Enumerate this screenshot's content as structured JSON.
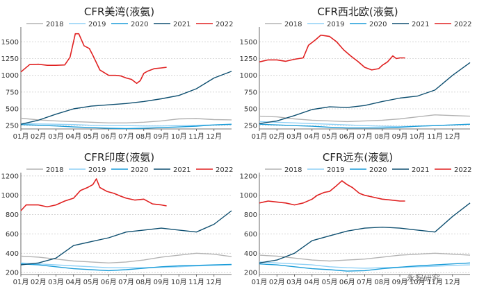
{
  "watermark": "永安研究",
  "chart_data": [
    {
      "type": "line",
      "title": "CFR美湾(液氨)",
      "categories": [
        "01月",
        "02月",
        "03月",
        "04月",
        "05月",
        "06月",
        "07月",
        "08月",
        "09月",
        "10月",
        "11月",
        "12月"
      ],
      "ylim": [
        200,
        1700
      ],
      "yticks": [
        250,
        500,
        750,
        1000,
        1250,
        1500
      ],
      "legend_position": "top",
      "grid": true,
      "series": [
        {
          "name": "2018",
          "color": "#b3b3b3",
          "x": [
            0,
            1,
            2,
            3,
            4,
            5,
            6,
            7,
            8,
            9,
            10,
            11,
            12
          ],
          "values": [
            360,
            335,
            320,
            310,
            300,
            290,
            290,
            300,
            320,
            350,
            355,
            340,
            335
          ]
        },
        {
          "name": "2019",
          "color": "#8fd0f5",
          "x": [
            0,
            1,
            2,
            3,
            4,
            5,
            6,
            7,
            8,
            9,
            10,
            11,
            12
          ],
          "values": [
            280,
            275,
            270,
            265,
            255,
            250,
            250,
            245,
            245,
            250,
            255,
            260,
            265
          ]
        },
        {
          "name": "2020",
          "color": "#1a9cd8",
          "x": [
            0,
            1,
            2,
            3,
            4,
            5,
            6,
            7,
            8,
            9,
            10,
            11,
            12
          ],
          "values": [
            265,
            255,
            245,
            230,
            220,
            210,
            205,
            210,
            220,
            230,
            240,
            260,
            270
          ]
        },
        {
          "name": "2021",
          "color": "#0e4f70",
          "x": [
            0,
            1,
            2,
            3,
            4,
            5,
            6,
            7,
            8,
            9,
            10,
            11,
            12
          ],
          "values": [
            270,
            330,
            420,
            500,
            540,
            560,
            580,
            610,
            650,
            700,
            800,
            960,
            1060
          ]
        },
        {
          "name": "2022",
          "color": "#e02020",
          "x": [
            0,
            0.5,
            1,
            1.5,
            2,
            2.5,
            2.8,
            3.1,
            3.3,
            3.6,
            3.9,
            4.1,
            4.5,
            5,
            5.4,
            5.7,
            6,
            6.3,
            6.6,
            6.8,
            7,
            7.2,
            7.6,
            8,
            8.3
          ],
          "values": [
            1050,
            1160,
            1165,
            1150,
            1150,
            1155,
            1270,
            1620,
            1620,
            1440,
            1400,
            1300,
            1080,
            1000,
            1000,
            990,
            960,
            940,
            880,
            920,
            1030,
            1060,
            1100,
            1110,
            1120
          ]
        }
      ]
    },
    {
      "type": "line",
      "title": "CFR西北欧(液氨)",
      "categories": [
        "01月",
        "02月",
        "03月",
        "04月",
        "05月",
        "06月",
        "07月",
        "08月",
        "09月",
        "10月",
        "11月",
        "12月"
      ],
      "ylim": [
        200,
        1700
      ],
      "yticks": [
        250,
        500,
        750,
        1000,
        1250,
        1500
      ],
      "legend_position": "top",
      "grid": true,
      "series": [
        {
          "name": "2018",
          "color": "#b3b3b3",
          "x": [
            0,
            1,
            2,
            3,
            4,
            5,
            6,
            7,
            8,
            9,
            10,
            11,
            12
          ],
          "values": [
            390,
            380,
            350,
            330,
            320,
            310,
            320,
            330,
            350,
            380,
            410,
            400,
            390
          ]
        },
        {
          "name": "2019",
          "color": "#8fd0f5",
          "x": [
            0,
            1,
            2,
            3,
            4,
            5,
            6,
            7,
            8,
            9,
            10,
            11,
            12
          ],
          "values": [
            310,
            300,
            290,
            280,
            270,
            260,
            250,
            240,
            235,
            240,
            250,
            260,
            270
          ]
        },
        {
          "name": "2020",
          "color": "#1a9cd8",
          "x": [
            0,
            1,
            2,
            3,
            4,
            5,
            6,
            7,
            8,
            9,
            10,
            11,
            12
          ],
          "values": [
            270,
            260,
            250,
            240,
            225,
            215,
            215,
            215,
            225,
            240,
            250,
            260,
            270
          ]
        },
        {
          "name": "2021",
          "color": "#0e4f70",
          "x": [
            0,
            1,
            2,
            3,
            4,
            5,
            6,
            7,
            8,
            9,
            10,
            11,
            12
          ],
          "values": [
            280,
            320,
            400,
            490,
            530,
            520,
            550,
            610,
            660,
            690,
            780,
            1000,
            1190
          ]
        },
        {
          "name": "2022",
          "color": "#e02020",
          "x": [
            0,
            0.5,
            1,
            1.5,
            2,
            2.5,
            2.8,
            3.2,
            3.5,
            4,
            4.4,
            4.8,
            5.2,
            5.6,
            6,
            6.4,
            6.8,
            7,
            7.3,
            7.6,
            7.8,
            8,
            8.3
          ],
          "values": [
            1200,
            1230,
            1230,
            1210,
            1240,
            1260,
            1450,
            1530,
            1600,
            1580,
            1500,
            1380,
            1290,
            1210,
            1120,
            1080,
            1100,
            1150,
            1200,
            1290,
            1250,
            1260,
            1260
          ]
        }
      ]
    },
    {
      "type": "line",
      "title": "CFR印度(液氨)",
      "categories": [
        "01月",
        "02月",
        "03月",
        "04月",
        "05月",
        "06月",
        "07月",
        "08月",
        "09月",
        "10月",
        "11月",
        "12月"
      ],
      "ylim": [
        180,
        1220
      ],
      "yticks": [
        200,
        400,
        600,
        800,
        1000,
        1200
      ],
      "legend_position": "top",
      "grid": true,
      "series": [
        {
          "name": "2018",
          "color": "#b3b3b3",
          "x": [
            0,
            1,
            2,
            3,
            4,
            5,
            6,
            7,
            8,
            9,
            10,
            11,
            12
          ],
          "values": [
            370,
            360,
            340,
            320,
            310,
            300,
            310,
            330,
            360,
            380,
            400,
            390,
            365
          ]
        },
        {
          "name": "2019",
          "color": "#8fd0f5",
          "x": [
            0,
            1,
            2,
            3,
            4,
            5,
            6,
            7,
            8,
            9,
            10,
            11,
            12
          ],
          "values": [
            300,
            290,
            280,
            270,
            260,
            250,
            250,
            250,
            255,
            260,
            270,
            275,
            280
          ]
        },
        {
          "name": "2020",
          "color": "#1a9cd8",
          "x": [
            0,
            1,
            2,
            3,
            4,
            5,
            6,
            7,
            8,
            9,
            10,
            11,
            12
          ],
          "values": [
            290,
            280,
            260,
            240,
            230,
            220,
            230,
            245,
            260,
            270,
            275,
            280,
            285
          ]
        },
        {
          "name": "2021",
          "color": "#0e4f70",
          "x": [
            0,
            1,
            2,
            3,
            4,
            5,
            6,
            7,
            8,
            9,
            10,
            11,
            12
          ],
          "values": [
            280,
            300,
            350,
            480,
            520,
            560,
            620,
            640,
            660,
            640,
            620,
            700,
            840
          ]
        },
        {
          "name": "2022",
          "color": "#e02020",
          "x": [
            0,
            0.3,
            1,
            1.5,
            2,
            2.5,
            3,
            3.4,
            3.8,
            4.1,
            4.3,
            4.5,
            4.9,
            5.3,
            5.7,
            6,
            6.5,
            7,
            7.5,
            8,
            8.3
          ],
          "values": [
            840,
            900,
            900,
            880,
            900,
            940,
            970,
            1050,
            1080,
            1110,
            1170,
            1080,
            1040,
            1020,
            990,
            970,
            950,
            960,
            910,
            900,
            890
          ]
        }
      ]
    },
    {
      "type": "line",
      "title": "CFR远东(液氨)",
      "categories": [
        "01月",
        "02月",
        "03月",
        "04月",
        "05月",
        "06月",
        "07月",
        "08月",
        "09月",
        "10月",
        "11月",
        "12月"
      ],
      "ylim": [
        180,
        1220
      ],
      "yticks": [
        200,
        400,
        600,
        800,
        1000,
        1200
      ],
      "legend_position": "top",
      "grid": true,
      "series": [
        {
          "name": "2018",
          "color": "#b3b3b3",
          "x": [
            0,
            1,
            2,
            3,
            4,
            5,
            6,
            7,
            8,
            9,
            10,
            11,
            12
          ],
          "values": [
            380,
            370,
            350,
            330,
            320,
            330,
            340,
            360,
            380,
            390,
            400,
            390,
            380
          ]
        },
        {
          "name": "2019",
          "color": "#8fd0f5",
          "x": [
            0,
            1,
            2,
            3,
            4,
            5,
            6,
            7,
            8,
            9,
            10,
            11,
            12
          ],
          "values": [
            310,
            300,
            290,
            280,
            260,
            250,
            245,
            250,
            255,
            260,
            265,
            275,
            280
          ]
        },
        {
          "name": "2020",
          "color": "#1a9cd8",
          "x": [
            0,
            1,
            2,
            3,
            4,
            5,
            6,
            7,
            8,
            9,
            10,
            11,
            12
          ],
          "values": [
            290,
            280,
            260,
            240,
            230,
            215,
            220,
            240,
            255,
            270,
            280,
            290,
            300
          ]
        },
        {
          "name": "2021",
          "color": "#0e4f70",
          "x": [
            0,
            1,
            2,
            3,
            4,
            5,
            6,
            7,
            8,
            9,
            10,
            11,
            12
          ],
          "values": [
            300,
            330,
            400,
            530,
            580,
            630,
            660,
            670,
            660,
            640,
            620,
            780,
            920
          ]
        },
        {
          "name": "2022",
          "color": "#e02020",
          "x": [
            0,
            0.5,
            1,
            1.5,
            2,
            2.5,
            3,
            3.3,
            3.7,
            4,
            4.4,
            4.7,
            5,
            5.3,
            5.7,
            6,
            6.5,
            7,
            7.5,
            8,
            8.3
          ],
          "values": [
            920,
            940,
            930,
            920,
            900,
            920,
            960,
            1000,
            1030,
            1040,
            1100,
            1150,
            1110,
            1080,
            1020,
            1000,
            980,
            960,
            950,
            940,
            940
          ]
        }
      ]
    }
  ]
}
